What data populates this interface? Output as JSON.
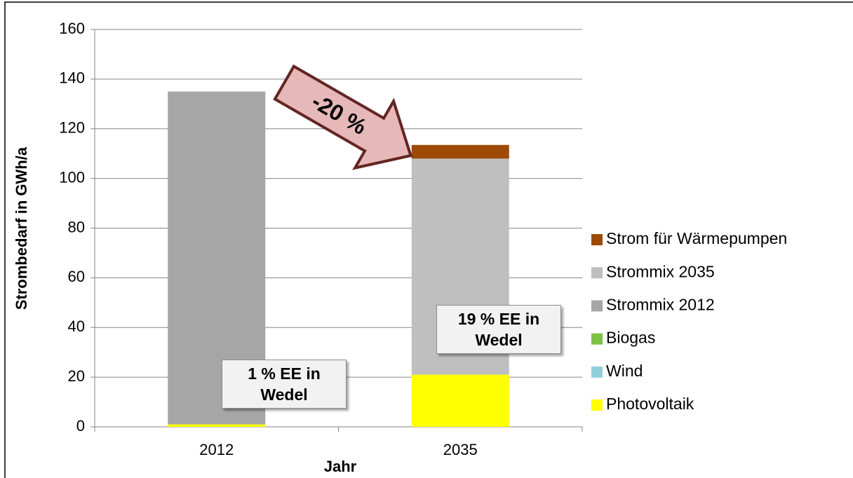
{
  "chart_data": {
    "type": "bar",
    "stacked": true,
    "y_label": "Strombedarf in GWh/a",
    "x_label": "Jahr",
    "categories": [
      "2012",
      "2035"
    ],
    "series": [
      {
        "name": "Photovoltaik",
        "color": "#ffff00",
        "values": [
          1,
          21
        ]
      },
      {
        "name": "Wind",
        "color": "#92cddc",
        "values": [
          0,
          0
        ]
      },
      {
        "name": "Biogas",
        "color": "#7dc242",
        "values": [
          0,
          0
        ]
      },
      {
        "name": "Strommix 2012",
        "color": "#a6a6a6",
        "values": [
          134,
          0
        ]
      },
      {
        "name": "Strommix 2035",
        "color": "#bfbfbf",
        "values": [
          0,
          87
        ]
      },
      {
        "name": "Strom für Wärmepumpen",
        "color": "#9c4a06",
        "values": [
          0,
          5.5
        ]
      }
    ],
    "ylim": [
      0,
      160
    ],
    "yticks": [
      0,
      20,
      40,
      60,
      80,
      100,
      120,
      140,
      160
    ],
    "grid": true,
    "legend": "right",
    "annotations": [
      "-20 %",
      "1 % EE in Wedel",
      "19 % EE in Wedel"
    ]
  }
}
